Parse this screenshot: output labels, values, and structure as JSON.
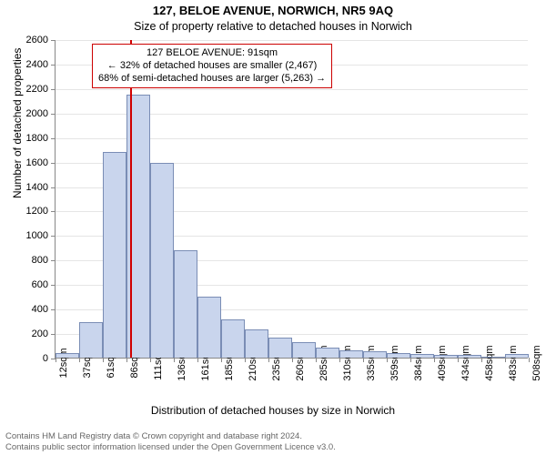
{
  "address": "127, BELOE AVENUE, NORWICH, NR5 9AQ",
  "subtitle": "Size of property relative to detached houses in Norwich",
  "ylabel": "Number of detached properties",
  "xlabel": "Distribution of detached houses by size in Norwich",
  "chart": {
    "type": "bar",
    "ylim": [
      0,
      2600
    ],
    "ytick_step": 200,
    "bar_fill": "#c9d5ed",
    "bar_border": "#7a8db5",
    "grid_color": "#e5e5e5",
    "axis_color": "#888888",
    "marker_color": "#d00000",
    "marker_x": 91,
    "x_start": 12,
    "x_bin_width": 25,
    "x_ticks": [
      "12sqm",
      "37sqm",
      "61sqm",
      "86sqm",
      "111sqm",
      "136sqm",
      "161sqm",
      "185sqm",
      "210sqm",
      "235sqm",
      "260sqm",
      "285sqm",
      "310sqm",
      "335sqm",
      "359sqm",
      "384sqm",
      "409sqm",
      "434sqm",
      "458sqm",
      "483sqm",
      "508sqm"
    ],
    "bars": [
      40,
      290,
      1680,
      2150,
      1590,
      880,
      500,
      310,
      230,
      160,
      130,
      80,
      60,
      50,
      35,
      30,
      25,
      20,
      10,
      30
    ]
  },
  "annotation": {
    "line1": "127 BELOE AVENUE: 91sqm",
    "line2": "← 32% of detached houses are smaller (2,467)",
    "line3": "68% of semi-detached houses are larger (5,263) →",
    "border_color": "#cc0000"
  },
  "footer": {
    "line1": "Contains HM Land Registry data © Crown copyright and database right 2024.",
    "line2": "Contains public sector information licensed under the Open Government Licence v3.0."
  }
}
